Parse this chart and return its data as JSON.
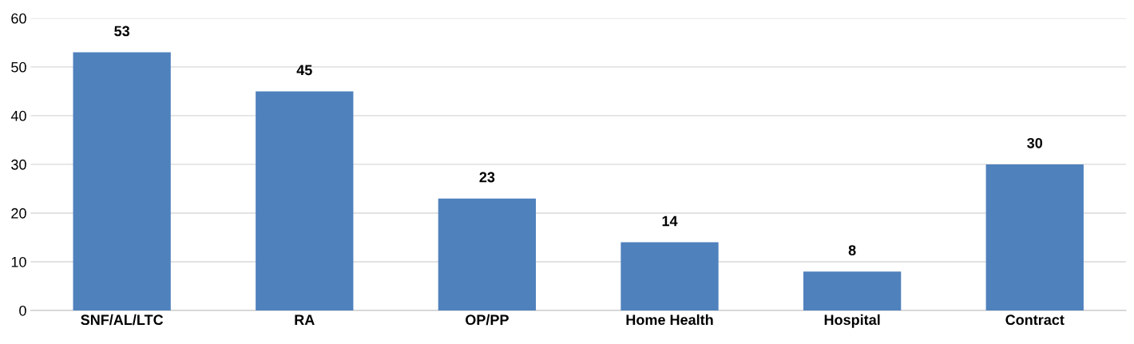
{
  "chart_data": {
    "type": "bar",
    "categories": [
      "SNF/AL/LTC",
      "RA",
      "OP/PP",
      "Home Health",
      "Hospital",
      "Contract"
    ],
    "values": [
      53,
      45,
      23,
      14,
      8,
      30
    ],
    "color": "#4f81bd",
    "ylim": [
      0,
      60
    ],
    "yticks": [
      0,
      10,
      20,
      30,
      40,
      50,
      60
    ],
    "grid": "y",
    "data_labels": true
  }
}
